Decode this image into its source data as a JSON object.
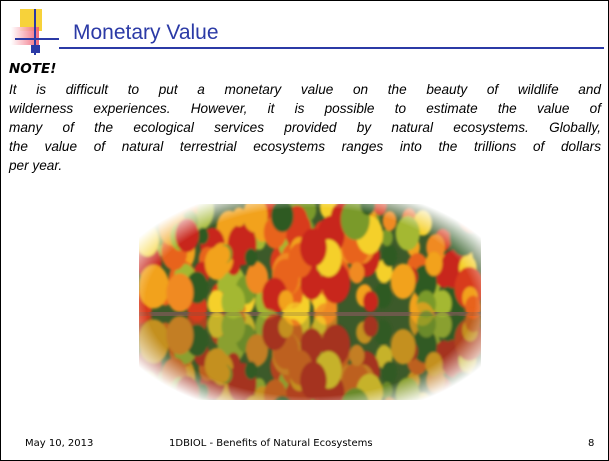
{
  "header": {
    "title": "Monetary Value"
  },
  "note": {
    "heading": "NOTE!",
    "lines": [
      "It is difficult to put a monetary value on the beauty of wildlife and",
      "wilderness experiences.  However, it is possible to estimate the value of",
      "many of the ecological services provided by natural ecosystems.  Globally,",
      "the value of natural terrestrial ecosystems ranges into the trillions of dollars",
      "per year."
    ]
  },
  "footer": {
    "date": "May 10, 2013",
    "center": "1DBIOL - Benefits of Natural Ecosystems",
    "page": "8"
  }
}
